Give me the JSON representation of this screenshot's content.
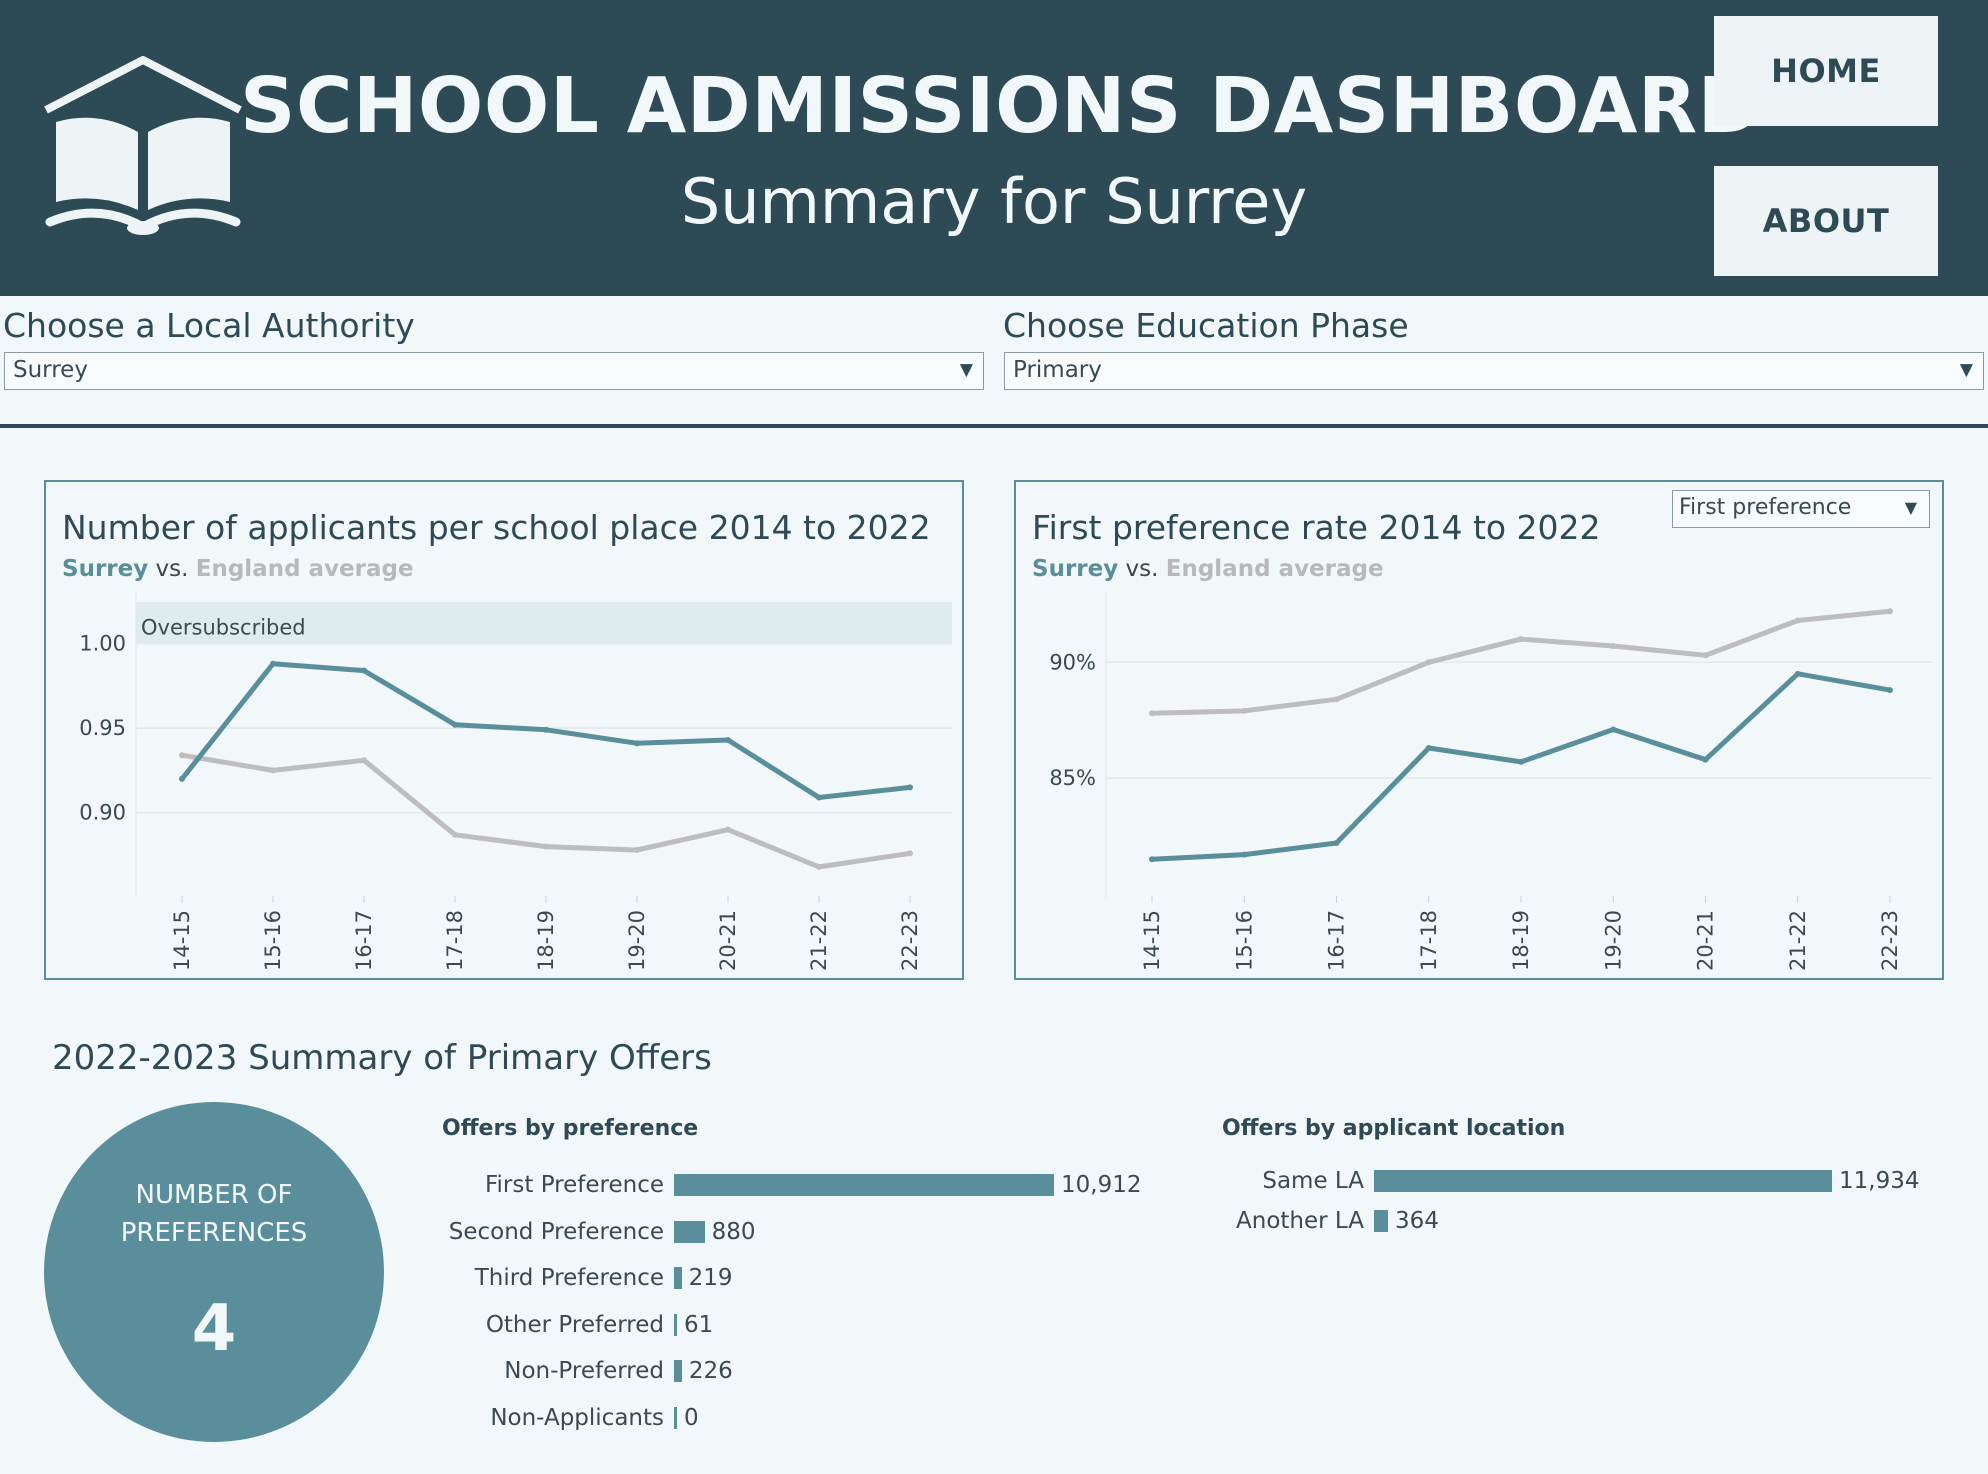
{
  "header": {
    "title": "SCHOOL ADMISSIONS DASHBOARD",
    "subtitle": "Summary for Surrey",
    "logo_icon": "open-book-house-icon",
    "home_label": "HOME",
    "about_label": "ABOUT"
  },
  "filters": {
    "authority_label": "Choose a Local Authority",
    "authority_value": "Surrey",
    "phase_label": "Choose Education Phase",
    "phase_value": "Primary"
  },
  "colors": {
    "header_bg": "#2d4a55",
    "surrey_series": "#5b8e9b",
    "england_series": "#bdbdbd",
    "background": "#f2f7f9"
  },
  "applicants_chart": {
    "title": "Number of applicants per school place 2014 to 2022",
    "subtitle_surrey": "Surrey",
    "subtitle_vs": " vs. ",
    "subtitle_england": "England average",
    "band_label": "Oversubscribed"
  },
  "preference_chart": {
    "title": "First preference rate 2014 to 2022",
    "subtitle_surrey": "Surrey",
    "subtitle_vs": " vs. ",
    "subtitle_england": "England average",
    "measure_select_value": "First preference"
  },
  "summary": {
    "title": "2022-2023 Summary of Primary Offers",
    "circle_label_line1": "NUMBER OF",
    "circle_label_line2": "PREFERENCES",
    "circle_value": "4"
  },
  "chart_data": [
    {
      "type": "line",
      "title": "Number of applicants per school place 2014 to 2022",
      "x": [
        "14-15",
        "15-16",
        "16-17",
        "17-18",
        "18-19",
        "19-20",
        "20-21",
        "21-22",
        "22-23"
      ],
      "series": [
        {
          "name": "Surrey",
          "values": [
            0.92,
            0.988,
            0.984,
            0.952,
            0.949,
            0.941,
            0.943,
            0.909,
            0.915
          ]
        },
        {
          "name": "England average",
          "values": [
            0.934,
            0.925,
            0.931,
            0.887,
            0.88,
            0.878,
            0.89,
            0.868,
            0.876
          ]
        }
      ],
      "yticks": [
        "0.90",
        "0.95",
        "1.00"
      ],
      "ylim": [
        0.852,
        1.0245
      ],
      "band": {
        "label": "Oversubscribed",
        "from": 1.0,
        "to": 1.0245
      },
      "grid": true
    },
    {
      "type": "line",
      "title": "First preference rate 2014 to 2022",
      "x": [
        "14-15",
        "15-16",
        "16-17",
        "17-18",
        "18-19",
        "19-20",
        "20-21",
        "21-22",
        "22-23"
      ],
      "series": [
        {
          "name": "Surrey",
          "values": [
            81.5,
            81.7,
            82.2,
            86.3,
            85.7,
            87.1,
            85.8,
            89.5,
            88.8
          ]
        },
        {
          "name": "England average",
          "values": [
            87.8,
            87.9,
            88.4,
            90.0,
            91.0,
            90.7,
            90.3,
            91.8,
            92.2
          ]
        }
      ],
      "yticks": [
        "85%",
        "90%"
      ],
      "ylim": [
        80.0,
        92.6
      ],
      "grid": true
    },
    {
      "type": "bar",
      "title": "Offers by preference",
      "categories": [
        "First Preference",
        "Second Preference",
        "Third Preference",
        "Other Preferred",
        "Non-Preferred",
        "Non-Applicants"
      ],
      "values": [
        10912,
        880,
        219,
        61,
        226,
        0
      ],
      "labels": [
        "10,912",
        "880",
        "219",
        "61",
        "226",
        "0"
      ]
    },
    {
      "type": "bar",
      "title": "Offers by applicant location",
      "categories": [
        "Same LA",
        "Another LA"
      ],
      "values": [
        11934,
        364
      ],
      "labels": [
        "11,934",
        "364"
      ]
    }
  ]
}
